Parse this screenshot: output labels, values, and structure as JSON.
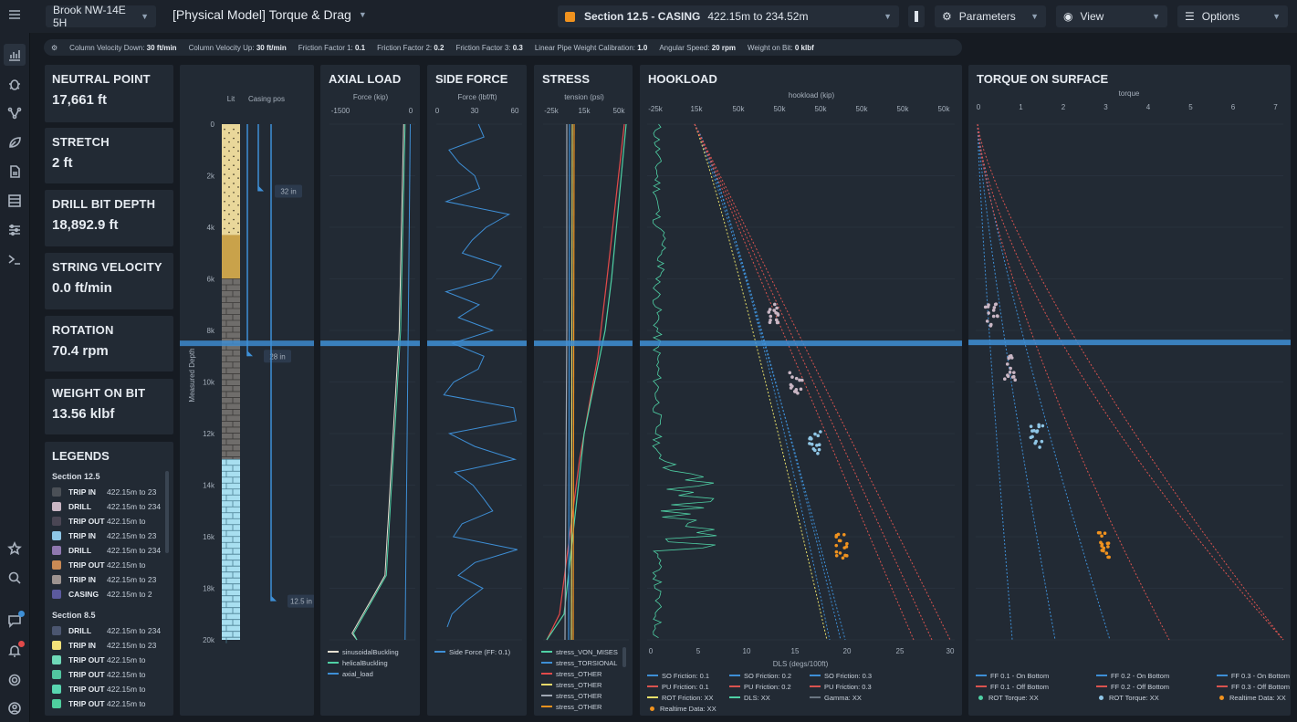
{
  "rail": [
    "chart-icon",
    "bug-icon",
    "network-icon",
    "leaf-icon",
    "file-icon",
    "table-icon",
    "sliders-icon",
    "terminal-icon",
    "star-icon",
    "search-icon",
    "chat-icon",
    "bell-icon",
    "settings-icon",
    "user-icon"
  ],
  "topbar": {
    "well": "Brook NW-14E 5H",
    "model": "[Physical Model] Torque & Drag",
    "section_name": "Section 12.5 - CASING",
    "section_range": "422.15m to 234.52m",
    "section_color": "#f0921e",
    "parameters": "Parameters",
    "view": "View",
    "options": "Options"
  },
  "params": [
    {
      "label": "Column Velocity Down:",
      "value": "30 ft/min"
    },
    {
      "label": "Column Velocity Up:",
      "value": "30 ft/min"
    },
    {
      "label": "Friction Factor 1:",
      "value": "0.1"
    },
    {
      "label": "Friction Factor 2:",
      "value": "0.2"
    },
    {
      "label": "Friction Factor 3:",
      "value": "0.3"
    },
    {
      "label": "Linear Pipe Weight Calibration:",
      "value": "1.0"
    },
    {
      "label": "Angular Speed:",
      "value": "20 rpm"
    },
    {
      "label": "Weight on Bit:",
      "value": "0 klbf"
    }
  ],
  "stats": [
    {
      "label": "NEUTRAL POINT",
      "value": "17,661 ft"
    },
    {
      "label": "STRETCH",
      "value": "2 ft"
    },
    {
      "label": "DRILL BIT DEPTH",
      "value": "18,892.9 ft"
    },
    {
      "label": "STRING VELOCITY",
      "value": "0.0 ft/min"
    },
    {
      "label": "ROTATION",
      "value": "70.4 rpm"
    },
    {
      "label": "WEIGHT ON BIT",
      "value": "13.56 klbf"
    }
  ],
  "legends": {
    "title": "LEGENDS",
    "sections": [
      {
        "name": "Section 12.5",
        "items": [
          {
            "label": "TRIP IN",
            "range": "422.15m to 23",
            "color": "#4b5057"
          },
          {
            "label": "DRILL",
            "range": "422.15m to 234",
            "color": "#c9b6c4"
          },
          {
            "label": "TRIP OUT",
            "range": "422.15m to",
            "color": "#4a4654"
          },
          {
            "label": "TRIP IN",
            "range": "422.15m to 23",
            "color": "#8fc6e6"
          },
          {
            "label": "DRILL",
            "range": "422.15m to 234",
            "color": "#8f78b0"
          },
          {
            "label": "TRIP OUT",
            "range": "422.15m to",
            "color": "#c98a55"
          },
          {
            "label": "TRIP IN",
            "range": "422.15m to 23",
            "color": "#9d9390"
          },
          {
            "label": "CASING",
            "range": "422.15m to 2",
            "color": "#5b5a9e"
          }
        ]
      },
      {
        "name": "Section 8.5",
        "items": [
          {
            "label": "DRILL",
            "range": "422.15m to 234",
            "color": "#4b5670"
          },
          {
            "label": "TRIP IN",
            "range": "422.15m to 23",
            "color": "#f3e27a"
          },
          {
            "label": "TRIP OUT",
            "range": "422.15m to",
            "color": "#6fd9b8"
          },
          {
            "label": "TRIP OUT",
            "range": "422.15m to",
            "color": "#52c7a0"
          },
          {
            "label": "TRIP OUT",
            "range": "422.15m to",
            "color": "#58d6b0"
          },
          {
            "label": "TRIP OUT",
            "range": "422.15m to",
            "color": "#4fcf9e"
          }
        ]
      }
    ]
  },
  "chart_data": [
    {
      "type": "column",
      "name": "wellbore",
      "xlabel_lit": "Lit",
      "xlabel_casing": "Casing pos",
      "ylabel": "Measured Depth",
      "y_ticks": [
        "0",
        "2k",
        "4k",
        "6k",
        "8k",
        "10k",
        "12k",
        "14k",
        "16k",
        "18k",
        "20k"
      ],
      "casing_labels": [
        "32 in",
        "28 in",
        "12.5 in"
      ],
      "current_depth": 8500
    },
    {
      "type": "line",
      "title": "AXIAL LOAD",
      "xlabel": "Force (kip)",
      "x_ticks": [
        "-1500",
        "0"
      ],
      "series": [
        {
          "name": "sinusoidalBuckling",
          "color": "#e7e0d2"
        },
        {
          "name": "helicalBuckling",
          "color": "#4fd1a5"
        },
        {
          "name": "axial_load",
          "color": "#3e8fd6"
        }
      ]
    },
    {
      "type": "line",
      "title": "SIDE FORCE",
      "xlabel": "Force (lbf/ft)",
      "x_ticks": [
        "0",
        "30",
        "60"
      ],
      "series": [
        {
          "name": "Side Force (FF: 0.1)",
          "color": "#3e8fd6"
        }
      ]
    },
    {
      "type": "line",
      "title": "STRESS",
      "xlabel": "tension (psi)",
      "x_ticks": [
        "-25k",
        "15k",
        "50k"
      ],
      "series": [
        {
          "name": "stress_VON_MISES",
          "color": "#4fd1a5"
        },
        {
          "name": "stress_TORSIONAL",
          "color": "#3e8fd6"
        },
        {
          "name": "stress_OTHER",
          "color": "#e24a4a"
        },
        {
          "name": "stress_OTHER",
          "color": "#e8d96a"
        },
        {
          "name": "stress_OTHER",
          "color": "#a0a8b4"
        },
        {
          "name": "stress_OTHER",
          "color": "#f0921e"
        }
      ]
    },
    {
      "type": "line",
      "title": "HOOKLOAD",
      "xlabel": "hookload (kip)",
      "x2label": "DLS (degs/100ft)",
      "x_ticks": [
        "-25k",
        "15k",
        "50k",
        "50k",
        "50k",
        "50k",
        "50k",
        "50k"
      ],
      "x2_ticks": [
        "0",
        "5",
        "10",
        "15",
        "20",
        "25",
        "30"
      ],
      "series": [
        {
          "name": "SO Friction: 0.1",
          "color": "#3e8fd6"
        },
        {
          "name": "SO Friction: 0.2",
          "color": "#3e8fd6"
        },
        {
          "name": "SO Friction: 0.3",
          "color": "#3e8fd6"
        },
        {
          "name": "PU Friction: 0.1",
          "color": "#d9534f"
        },
        {
          "name": "PU Friction: 0.2",
          "color": "#d9534f"
        },
        {
          "name": "PU Friction: 0.3",
          "color": "#d9534f"
        },
        {
          "name": "ROT Friction: XX",
          "color": "#e8e06a"
        },
        {
          "name": "DLS: XX",
          "color": "#4fd1a5"
        },
        {
          "name": "Gamma: XX",
          "color": "#6b7682"
        },
        {
          "name": "Realtime Data: XX",
          "color": "#f0921e"
        }
      ]
    },
    {
      "type": "line",
      "title": "TORQUE ON SURFACE",
      "xlabel": "torque",
      "x_ticks": [
        "0",
        "1",
        "2",
        "3",
        "4",
        "5",
        "6",
        "7"
      ],
      "series": [
        {
          "name": "FF 0.1 - On Bottom",
          "color": "#3e8fd6"
        },
        {
          "name": "FF 0.2 - On Bottom",
          "color": "#3e8fd6"
        },
        {
          "name": "FF 0.3 - On Bottom",
          "color": "#3e8fd6"
        },
        {
          "name": "FF 0.1 - Off Bottom",
          "color": "#d9534f"
        },
        {
          "name": "FF 0.2 - Off Bottom",
          "color": "#d9534f"
        },
        {
          "name": "FF 0.3 - Off Bottom",
          "color": "#d9534f"
        },
        {
          "name": "ROT Torque: XX",
          "color": "#4fd1a5"
        },
        {
          "name": "ROT Torque: XX",
          "color": "#8fc6e6"
        },
        {
          "name": "Realtime Data: XX",
          "color": "#f0921e"
        }
      ]
    }
  ]
}
